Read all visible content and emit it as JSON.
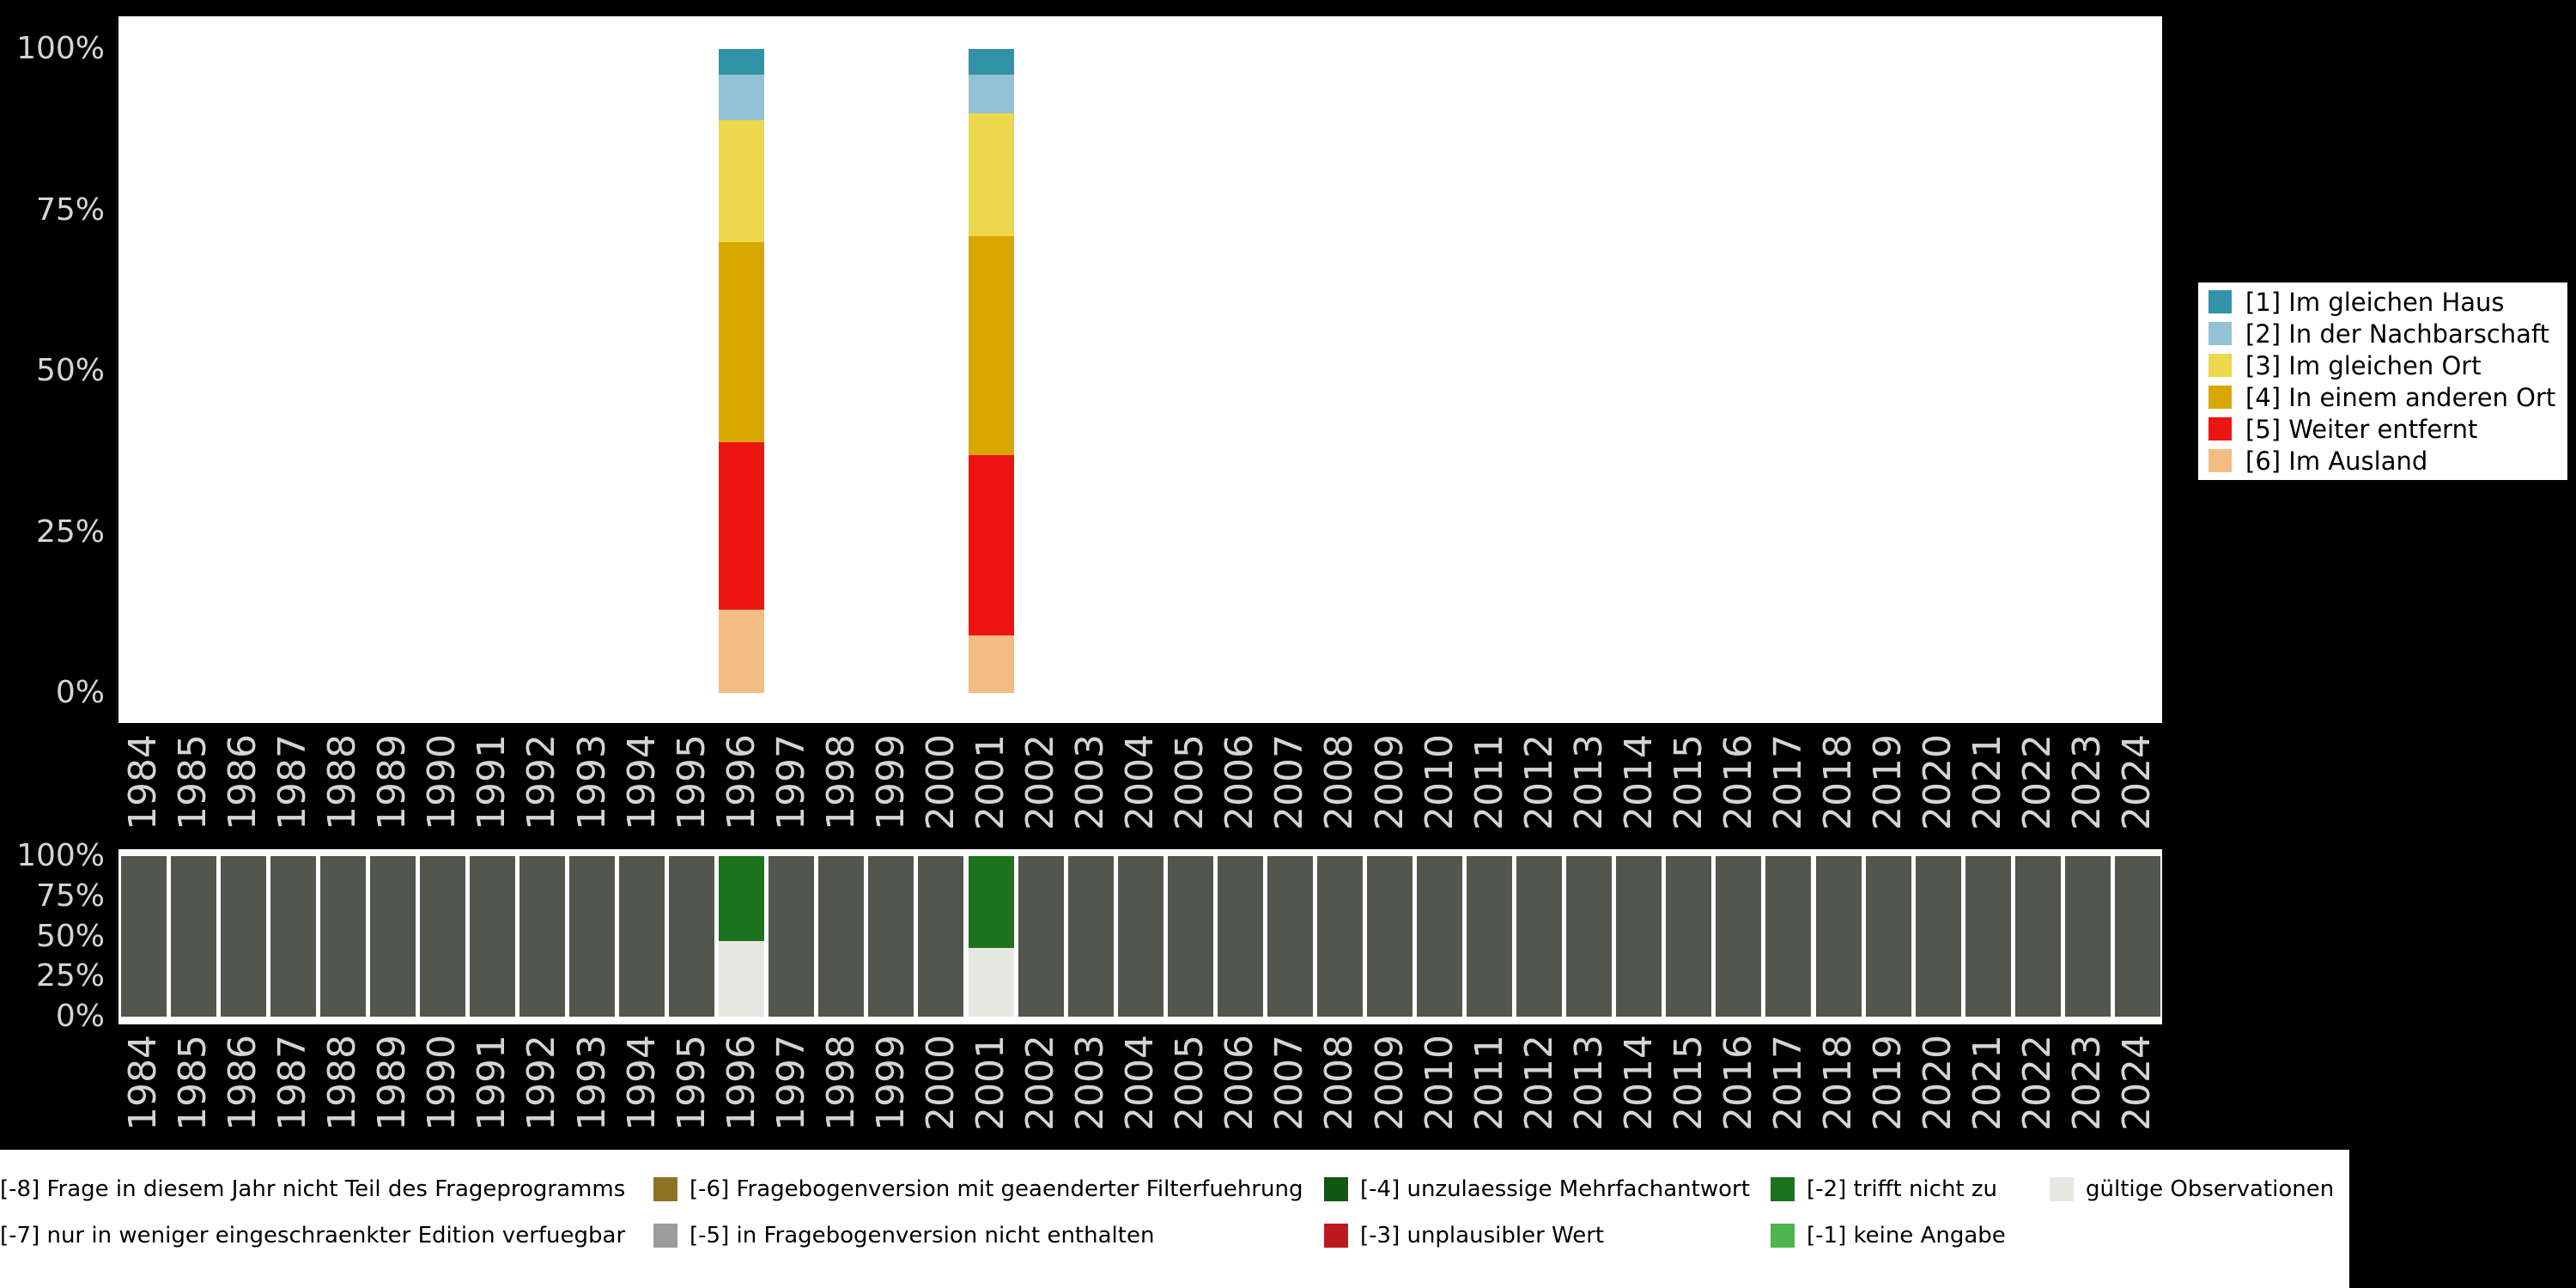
{
  "colors": {
    "background": "#000000",
    "panel": "#ffffff",
    "axis_text": "#d4d4d4",
    "legend_text": "#000000"
  },
  "years": [
    "1984",
    "1985",
    "1986",
    "1987",
    "1988",
    "1989",
    "1990",
    "1991",
    "1992",
    "1993",
    "1994",
    "1995",
    "1996",
    "1997",
    "1998",
    "1999",
    "2000",
    "2001",
    "2002",
    "2003",
    "2004",
    "2005",
    "2006",
    "2007",
    "2008",
    "2009",
    "2010",
    "2011",
    "2012",
    "2013",
    "2014",
    "2015",
    "2016",
    "2017",
    "2018",
    "2019",
    "2020",
    "2021",
    "2022",
    "2023",
    "2024"
  ],
  "chart_data": [
    {
      "name": "distribution-by-year",
      "type": "bar",
      "stacked": true,
      "x_categories": "years 1984-2024, only 1996 and 2001 have data",
      "ylim": [
        0,
        100
      ],
      "yticks": [
        "100%",
        "75%",
        "50%",
        "25%",
        "0%"
      ],
      "legend_position": "right",
      "series": [
        {
          "name": "[1] Im gleichen Haus",
          "color": "#3292a8",
          "values": {
            "default": 0,
            "1996": 4,
            "2001": 4
          }
        },
        {
          "name": "[2] In der Nachbarschaft",
          "color": "#92c2d4",
          "values": {
            "default": 0,
            "1996": 7,
            "2001": 6
          }
        },
        {
          "name": "[3] Im gleichen Ort",
          "color": "#edd74a",
          "values": {
            "default": 0,
            "1996": 19,
            "2001": 19
          }
        },
        {
          "name": "[4] In einem anderen Ort",
          "color": "#d8a800",
          "values": {
            "default": 0,
            "1996": 31,
            "2001": 34
          }
        },
        {
          "name": "[5] Weiter entfernt",
          "color": "#ee1511",
          "values": {
            "default": 0,
            "1996": 26,
            "2001": 28
          }
        },
        {
          "name": "[6] Im Ausland",
          "color": "#f3bd81",
          "values": {
            "default": 0,
            "1996": 13,
            "2001": 9
          }
        }
      ]
    },
    {
      "name": "missing-values-by-year",
      "type": "bar",
      "stacked": true,
      "x_categories": "years 1984-2024",
      "ylim": [
        0,
        100
      ],
      "yticks": [
        "100%",
        "75%",
        "50%",
        "25%",
        "0%"
      ],
      "legend_position": "bottom",
      "series": [
        {
          "name": "[-8] Frage in diesem Jahr nicht Teil des Frageprogramms",
          "color": "#53564d",
          "values": {
            "default": 100,
            "1996": 0,
            "2001": 0
          }
        },
        {
          "name": "[-2] trifft nicht zu",
          "color": "#1d731d",
          "values": {
            "default": 0,
            "1996": 53,
            "2001": 57
          }
        },
        {
          "name": "gültige Observationen",
          "color": "#e8e8e3",
          "values": {
            "default": 0,
            "1996": 47,
            "2001": 43
          }
        }
      ]
    }
  ],
  "bottom_legend": {
    "rows": [
      [
        {
          "label": "[-8] Frage in diesem Jahr nicht Teil des Frageprogramms",
          "color": "#54431d"
        },
        {
          "label": "[-6] Fragebogenversion mit geaenderter Filterfuehrung",
          "color": "#8d7226"
        },
        {
          "label": "[-4] unzulaessige Mehrfachantwort",
          "color": "#115611"
        },
        {
          "label": "[-2] trifft nicht zu",
          "color": "#1d731d"
        },
        {
          "label": "gültige Observationen",
          "color": "#e8e8e3"
        }
      ],
      [
        {
          "label": "[-7] nur in weniger eingeschraenkter Edition verfuegbar",
          "color": "#9c9c9c"
        },
        {
          "label": "[-5] in Fragebogenversion nicht enthalten",
          "color": "#9c9c9c"
        },
        {
          "label": "[-3] unplausibler Wert",
          "color": "#bb1a1e"
        },
        {
          "label": "[-1] keine Angabe",
          "color": "#4eb44e"
        }
      ]
    ]
  }
}
